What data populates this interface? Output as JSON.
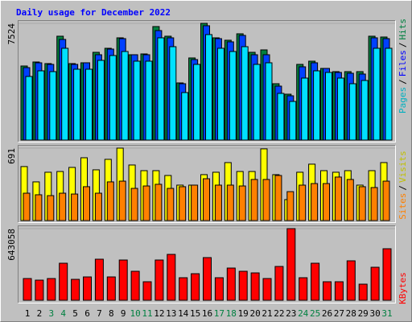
{
  "legend_separator": "/",
  "chart_data": [
    {
      "type": "bar",
      "title": "Daily usage for December 2022",
      "ylim": [
        0,
        7524
      ],
      "yticks": [
        7524
      ],
      "series": [
        {
          "name": "Hits",
          "color": "#008040",
          "values": [
            4775,
            5034,
            4930,
            6695,
            4930,
            4982,
            5657,
            5917,
            6591,
            5501,
            5553,
            7318,
            6695,
            3685,
            5294,
            7524,
            6591,
            6436,
            6851,
            5657,
            5813,
            3633,
            2958,
            4879,
            5086,
            4619,
            4412,
            4412,
            4412,
            6695,
            6643
          ]
        },
        {
          "name": "Files",
          "color": "#0040ff",
          "values": [
            4671,
            4982,
            4879,
            6488,
            4879,
            4982,
            5501,
            5865,
            6539,
            5501,
            5501,
            7058,
            6591,
            3633,
            5190,
            7370,
            6539,
            6332,
            6747,
            5501,
            5501,
            3477,
            2855,
            4723,
            4982,
            4619,
            4360,
            4308,
            4256,
            6591,
            6539
          ]
        },
        {
          "name": "Pages",
          "color": "#00e0ff",
          "values": [
            4100,
            4463,
            4412,
            5917,
            4567,
            4567,
            5138,
            5450,
            5709,
            5086,
            5086,
            6591,
            6020,
            3062,
            4879,
            6799,
            5917,
            5709,
            6020,
            4879,
            4982,
            3010,
            2491,
            3996,
            4463,
            4360,
            3996,
            3633,
            3841,
            5917,
            5917
          ]
        }
      ]
    },
    {
      "type": "bar",
      "ylim": [
        0,
        691
      ],
      "yticks": [
        691
      ],
      "series": [
        {
          "name": "Visits",
          "color": "#ffff00",
          "values": [
            515,
            369,
            461,
            468,
            507,
            599,
            484,
            584,
            691,
            530,
            476,
            476,
            430,
            338,
            338,
            438,
            461,
            553,
            468,
            468,
            684,
            438,
            200,
            461,
            538,
            476,
            461,
            476,
            338,
            476,
            553
          ]
        },
        {
          "name": "Sites",
          "color": "#ff8000",
          "values": [
            261,
            246,
            238,
            261,
            253,
            323,
            261,
            369,
            376,
            307,
            330,
            346,
            307,
            323,
            338,
            399,
            338,
            338,
            330,
            392,
            392,
            430,
            276,
            338,
            353,
            353,
            415,
            392,
            323,
            315,
            376
          ]
        }
      ]
    },
    {
      "type": "bar",
      "ylim": [
        0,
        643058
      ],
      "yticks": [
        643058
      ],
      "categories": [
        "1",
        "2",
        "3",
        "4",
        "5",
        "6",
        "7",
        "8",
        "9",
        "10",
        "11",
        "12",
        "13",
        "14",
        "15",
        "16",
        "17",
        "18",
        "19",
        "20",
        "21",
        "22",
        "23",
        "24",
        "25",
        "26",
        "27",
        "28",
        "29",
        "30",
        "31"
      ],
      "category_colors": [
        "#000000",
        "#000000",
        "#008040",
        "#008040",
        "#000000",
        "#000000",
        "#000000",
        "#000000",
        "#000000",
        "#008040",
        "#008040",
        "#000000",
        "#000000",
        "#000000",
        "#000000",
        "#000000",
        "#008040",
        "#008040",
        "#000000",
        "#000000",
        "#000000",
        "#000000",
        "#000000",
        "#008040",
        "#008040",
        "#000000",
        "#000000",
        "#000000",
        "#000000",
        "#000000",
        "#008040"
      ],
      "series": [
        {
          "name": "KBytes",
          "color": "#ff0000",
          "values": [
            195075,
            180625,
            195075,
            332350,
            187850,
            209525,
            368475,
            209525,
            361250,
            260100,
            166175,
            361250,
            411825,
            202300,
            238425,
            382925,
            202300,
            289000,
            260100,
            245650,
            195075,
            303450,
            643058,
            202300,
            332350,
            166175,
            166175,
            354025,
            144500,
            296225,
            462400
          ]
        }
      ]
    }
  ]
}
